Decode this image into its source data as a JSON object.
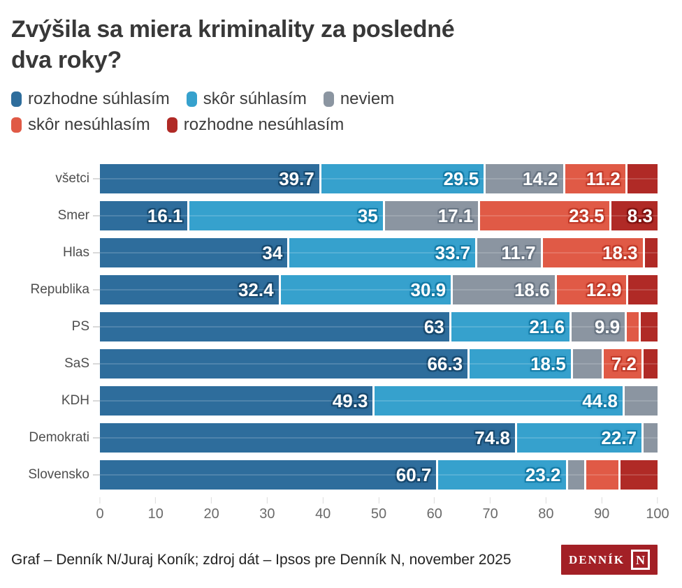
{
  "title_lines": [
    "Zvýšila sa miera kriminality za posledné",
    "dva roky?"
  ],
  "chart_data": {
    "type": "bar",
    "variant": "stacked-horizontal",
    "title": "Zvýšila sa miera kriminality za posledné dva roky?",
    "xlabel": "",
    "ylabel": "",
    "x_axis": {
      "min": 0,
      "max": 100,
      "ticks": [
        0,
        10,
        20,
        30,
        40,
        50,
        60,
        70,
        80,
        90,
        100
      ]
    },
    "grid": false,
    "legend_position": "top",
    "series": [
      {
        "name": "rozhodne súhlasím",
        "color": "#2e6d9c",
        "stroke": "#17496f"
      },
      {
        "name": "skôr súhlasím",
        "color": "#36a1cd",
        "stroke": "#147ca8"
      },
      {
        "name": "neviem",
        "color": "#8b95a1",
        "stroke": "#6a7684"
      },
      {
        "name": "skôr nesúhlasím",
        "color": "#e05a46",
        "stroke": "#c13a29"
      },
      {
        "name": "rozhodne nesúhlasím",
        "color": "#b02a26",
        "stroke": "#811210"
      }
    ],
    "legend_rows": [
      [
        0,
        1,
        2
      ],
      [
        3,
        4
      ]
    ],
    "categories": [
      "všetci",
      "Smer",
      "Hlas",
      "Republika",
      "PS",
      "SaS",
      "KDH",
      "Demokrati",
      "Slovensko"
    ],
    "rows": [
      {
        "category": "všetci",
        "values": [
          39.7,
          29.5,
          14.2,
          11.2,
          5.4
        ],
        "labels": [
          "39.7",
          "29.5",
          "14.2",
          "11.2",
          ""
        ]
      },
      {
        "category": "Smer",
        "values": [
          16.1,
          35.0,
          17.1,
          23.5,
          8.3
        ],
        "labels": [
          "16.1",
          "35",
          "17.1",
          "23.5",
          "8.3"
        ]
      },
      {
        "category": "Hlas",
        "values": [
          34.0,
          33.7,
          11.7,
          18.3,
          2.3
        ],
        "labels": [
          "34",
          "33.7",
          "11.7",
          "18.3",
          ""
        ]
      },
      {
        "category": "Republika",
        "values": [
          32.4,
          30.9,
          18.6,
          12.9,
          5.2
        ],
        "labels": [
          "32.4",
          "30.9",
          "18.6",
          "12.9",
          ""
        ]
      },
      {
        "category": "PS",
        "values": [
          63.0,
          21.6,
          9.9,
          2.5,
          3.0
        ],
        "labels": [
          "63",
          "21.6",
          "9.9",
          "",
          ""
        ]
      },
      {
        "category": "SaS",
        "values": [
          66.3,
          18.5,
          5.5,
          7.2,
          2.5
        ],
        "labels": [
          "66.3",
          "18.5",
          "",
          "7.2",
          ""
        ]
      },
      {
        "category": "KDH",
        "values": [
          49.3,
          44.8,
          5.9,
          0,
          0
        ],
        "labels": [
          "49.3",
          "44.8",
          "",
          "",
          ""
        ]
      },
      {
        "category": "Demokrati",
        "values": [
          74.8,
          22.7,
          2.5,
          0,
          0
        ],
        "labels": [
          "74.8",
          "22.7",
          "",
          "",
          ""
        ]
      },
      {
        "category": "Slovensko",
        "values": [
          60.7,
          23.2,
          3.3,
          6.1,
          6.7
        ],
        "labels": [
          "60.7",
          "23.2",
          "",
          "",
          ""
        ]
      }
    ]
  },
  "footer": {
    "credit": "Graf – Denník N/Juraj Koník; zdroj dát – Ipsos pre Denník N, november 2025",
    "logo_text": "DENNÍK",
    "logo_n": "N",
    "logo_bg": "#a32026"
  }
}
